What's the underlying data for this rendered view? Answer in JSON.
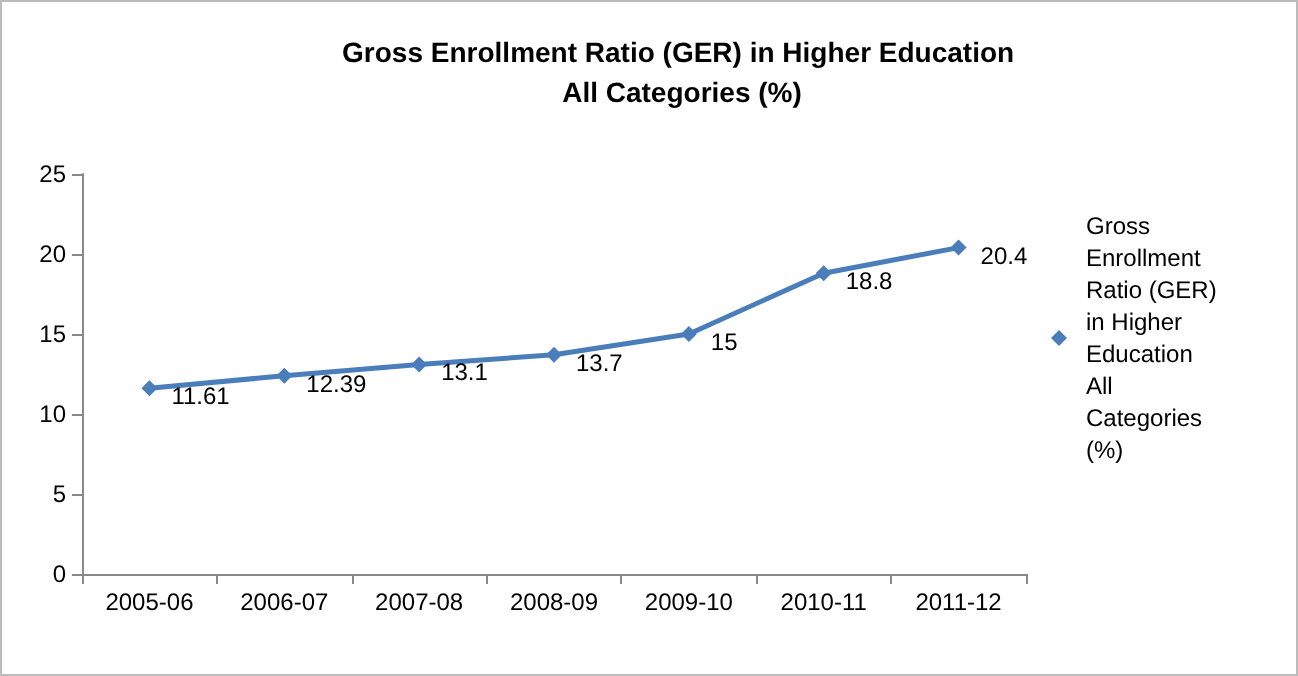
{
  "chart_data": {
    "type": "line",
    "title": "Gross Enrollment Ratio (GER) in Higher Education All Categories (%)",
    "categories": [
      "2005-06",
      "2006-07",
      "2007-08",
      "2008-09",
      "2009-10",
      "2010-11",
      "2011-12"
    ],
    "series": [
      {
        "name": "Gross Enrollment Ratio (GER) in Higher Education All Categories (%)",
        "color": "#4a7ebb",
        "values": [
          11.61,
          12.39,
          13.1,
          13.7,
          15,
          18.8,
          20.4
        ]
      }
    ],
    "ylim": [
      0,
      25
    ],
    "yticks": [
      0,
      5,
      10,
      15,
      20,
      25
    ],
    "grid": false,
    "legend": "right",
    "marker": "diamond",
    "line_style": "solid",
    "data_labels": true
  }
}
